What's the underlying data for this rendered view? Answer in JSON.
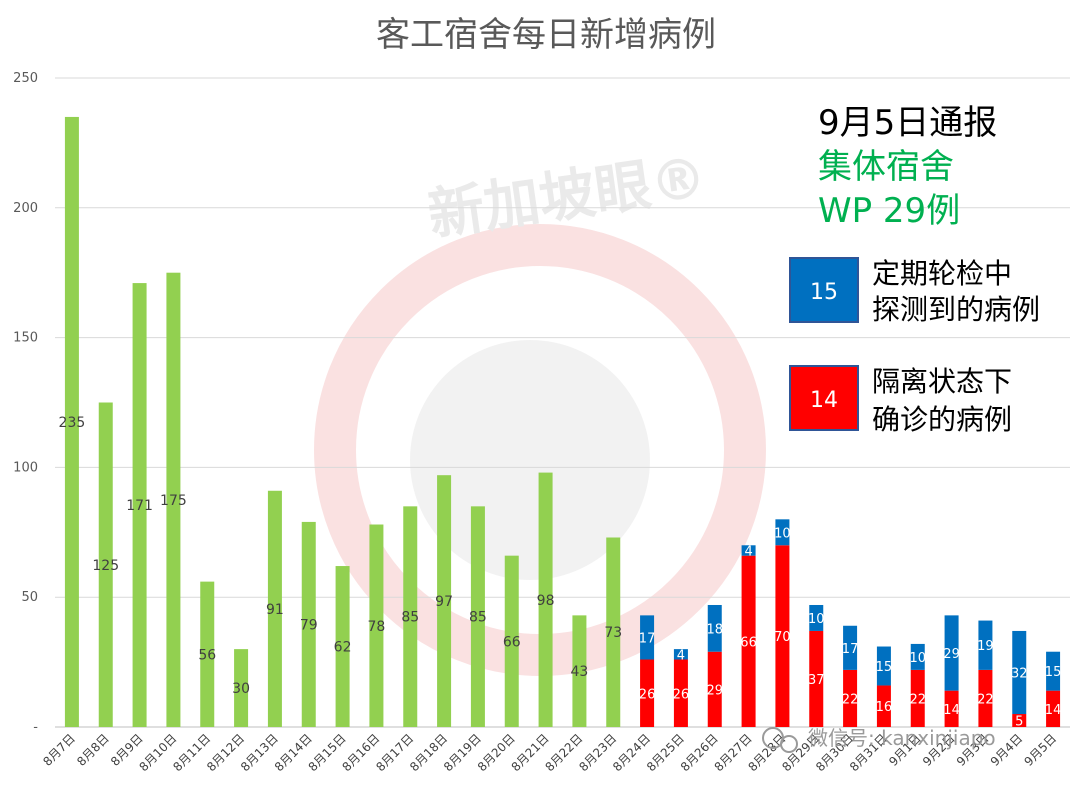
{
  "chart_data": {
    "type": "bar",
    "title": "客工宿舍每日新增病例",
    "ylim": [
      0,
      250
    ],
    "yticks": [
      0,
      50,
      100,
      150,
      200,
      250
    ],
    "grid": true,
    "categories": [
      "8月7日",
      "8月8日",
      "8月9日",
      "8月10日",
      "8月11日",
      "8月12日",
      "8月13日",
      "8月14日",
      "8月15日",
      "8月16日",
      "8月17日",
      "8月18日",
      "8月19日",
      "8月20日",
      "8月21日",
      "8月22日",
      "8月23日",
      "8月24日",
      "8月25日",
      "8月26日",
      "8月27日",
      "8月28日",
      "8月29日",
      "8月30日",
      "8月31日",
      "9月1日",
      "9月2日",
      "9月3日",
      "9月4日",
      "9月5日"
    ],
    "series": [
      {
        "name": "",
        "color": "#92d050",
        "values": [
          235,
          125,
          171,
          175,
          56,
          30,
          91,
          79,
          62,
          78,
          85,
          97,
          85,
          66,
          98,
          43,
          73,
          null,
          null,
          null,
          null,
          null,
          null,
          null,
          null,
          null,
          null,
          null,
          null,
          null
        ]
      },
      {
        "name": "隔离状态下确诊的病例",
        "color": "#ff0000",
        "values": [
          null,
          null,
          null,
          null,
          null,
          null,
          null,
          null,
          null,
          null,
          null,
          null,
          null,
          null,
          null,
          null,
          null,
          26,
          26,
          29,
          66,
          70,
          37,
          22,
          16,
          22,
          14,
          22,
          5,
          14
        ]
      },
      {
        "name": "定期轮检中探测到的病例",
        "color": "#0070c0",
        "values": [
          null,
          null,
          null,
          null,
          null,
          null,
          null,
          null,
          null,
          null,
          null,
          null,
          null,
          null,
          null,
          null,
          null,
          17,
          4,
          18,
          4,
          10,
          10,
          17,
          15,
          10,
          29,
          19,
          32,
          15
        ]
      }
    ]
  },
  "annotation": {
    "line1": "9月5日通报",
    "line2": "集体宿舍",
    "line3": "WP 29例"
  },
  "legend": [
    {
      "value": "15",
      "line1": "定期轮检中",
      "line2": "探测到的病例",
      "color": "#0070c0"
    },
    {
      "value": "14",
      "line1": "隔离状态下",
      "line2": "确诊的病例",
      "color": "#ff0000"
    }
  ],
  "watermark": {
    "text": "新加坡眼®",
    "wechat": "微信号: kanxinjiapo"
  }
}
